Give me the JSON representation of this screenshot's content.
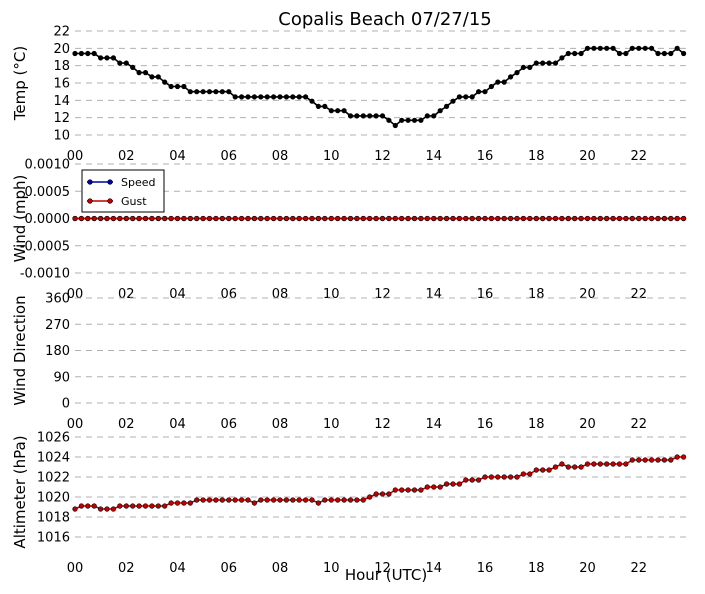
{
  "title": "Copalis Beach 07/27/15",
  "xlabel": "Hour (UTC)",
  "x_tick_labels": [
    "00",
    "02",
    "04",
    "06",
    "08",
    "10",
    "12",
    "14",
    "16",
    "18",
    "20",
    "22"
  ],
  "chart_data": [
    {
      "type": "line",
      "name": "temperature",
      "ylabel": "Temp (°C)",
      "xlim": [
        0,
        24
      ],
      "ylim": [
        10,
        22
      ],
      "yticks": [
        "10",
        "12",
        "14",
        "16",
        "18",
        "20",
        "22"
      ],
      "grid": true,
      "color": "#000000",
      "x_step_hours": 0.25,
      "values": [
        19.4,
        19.4,
        19.4,
        19.4,
        18.9,
        18.9,
        18.9,
        18.3,
        18.3,
        17.8,
        17.2,
        17.2,
        16.7,
        16.7,
        16.1,
        15.6,
        15.6,
        15.6,
        15.0,
        15.0,
        15.0,
        15.0,
        15.0,
        15.0,
        15.0,
        14.4,
        14.4,
        14.4,
        14.4,
        14.4,
        14.4,
        14.4,
        14.4,
        14.4,
        14.4,
        14.4,
        14.4,
        13.9,
        13.3,
        13.3,
        12.8,
        12.8,
        12.8,
        12.2,
        12.2,
        12.2,
        12.2,
        12.2,
        12.2,
        11.7,
        11.1,
        11.7,
        11.7,
        11.7,
        11.7,
        12.2,
        12.2,
        12.8,
        13.3,
        13.9,
        14.4,
        14.4,
        14.4,
        15.0,
        15.0,
        15.6,
        16.1,
        16.1,
        16.7,
        17.2,
        17.8,
        17.8,
        18.3,
        18.3,
        18.3,
        18.3,
        18.9,
        19.4,
        19.4,
        19.4,
        20.0,
        20.0,
        20.0,
        20.0,
        20.0,
        19.4,
        19.4,
        20.0,
        20.0,
        20.0,
        20.0,
        19.4,
        19.4,
        19.4,
        20.0,
        19.4
      ]
    },
    {
      "type": "line",
      "name": "wind",
      "ylabel": "Wind (mph)",
      "xlim": [
        0,
        24
      ],
      "ylim": [
        -0.001,
        0.001
      ],
      "yticks": [
        "-0.0010",
        "-0.0005",
        "0.0000",
        "0.0005",
        "0.0010"
      ],
      "grid": true,
      "legend": "top-left",
      "series": [
        {
          "name": "Speed",
          "color": "#0000a0",
          "value": 0,
          "count": 96
        },
        {
          "name": "Gust",
          "color": "#c00000",
          "value": 0,
          "count": 96
        }
      ]
    },
    {
      "type": "scatter",
      "name": "wind_direction",
      "ylabel": "Wind Direction",
      "xlim": [
        0,
        24
      ],
      "ylim": [
        0,
        360
      ],
      "yticks": [
        "0",
        "90",
        "180",
        "270",
        "360"
      ],
      "grid": true,
      "values": []
    },
    {
      "type": "line",
      "name": "altimeter",
      "ylabel": "Altimeter (hPa)",
      "xlim": [
        0,
        24
      ],
      "ylim": [
        1015,
        1026
      ],
      "yticks": [
        "1016",
        "1018",
        "1020",
        "1022",
        "1024",
        "1026"
      ],
      "grid": true,
      "color": "#c00000",
      "x_step_hours": 0.25,
      "values": [
        1018.8,
        1019.1,
        1019.1,
        1019.1,
        1018.8,
        1018.8,
        1018.8,
        1019.1,
        1019.1,
        1019.1,
        1019.1,
        1019.1,
        1019.1,
        1019.1,
        1019.1,
        1019.4,
        1019.4,
        1019.4,
        1019.4,
        1019.7,
        1019.7,
        1019.7,
        1019.7,
        1019.7,
        1019.7,
        1019.7,
        1019.7,
        1019.7,
        1019.4,
        1019.7,
        1019.7,
        1019.7,
        1019.7,
        1019.7,
        1019.7,
        1019.7,
        1019.7,
        1019.7,
        1019.4,
        1019.7,
        1019.7,
        1019.7,
        1019.7,
        1019.7,
        1019.7,
        1019.7,
        1020.0,
        1020.3,
        1020.3,
        1020.3,
        1020.7,
        1020.7,
        1020.7,
        1020.7,
        1020.7,
        1021.0,
        1021.0,
        1021.0,
        1021.3,
        1021.3,
        1021.3,
        1021.7,
        1021.7,
        1021.7,
        1022.0,
        1022.0,
        1022.0,
        1022.0,
        1022.0,
        1022.0,
        1022.3,
        1022.3,
        1022.7,
        1022.7,
        1022.7,
        1023.0,
        1023.3,
        1023.0,
        1023.0,
        1023.0,
        1023.3,
        1023.3,
        1023.3,
        1023.3,
        1023.3,
        1023.3,
        1023.3,
        1023.7,
        1023.7,
        1023.7,
        1023.7,
        1023.7,
        1023.7,
        1023.7,
        1024.0,
        1024.0
      ]
    }
  ]
}
